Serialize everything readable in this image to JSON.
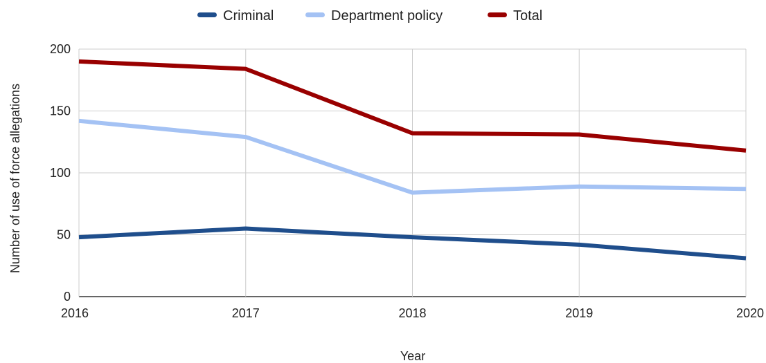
{
  "chart_data": {
    "type": "line",
    "xlabel": "Year",
    "ylabel": "Number of use of force allegations",
    "categories": [
      "2016",
      "2017",
      "2018",
      "2019",
      "2020"
    ],
    "ylim": [
      0,
      200
    ],
    "yticks": [
      0,
      50,
      100,
      150,
      200
    ],
    "grid": true,
    "legend_position": "top",
    "series": [
      {
        "name": "Criminal",
        "color": "#1f4e8c",
        "values": [
          48,
          55,
          48,
          42,
          31
        ]
      },
      {
        "name": "Department policy",
        "color": "#a4c2f4",
        "values": [
          142,
          129,
          84,
          89,
          87
        ]
      },
      {
        "name": "Total",
        "color": "#990000",
        "values": [
          190,
          184,
          132,
          131,
          118
        ]
      }
    ]
  }
}
